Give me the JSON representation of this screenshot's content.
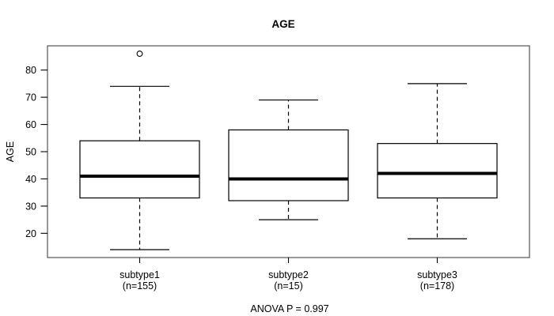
{
  "chart_data": {
    "type": "boxplot",
    "title": "AGE",
    "ylabel": "AGE",
    "footer": "ANOVA P = 0.997",
    "ylim": [
      11.1,
      88.9
    ],
    "yticks": [
      20,
      30,
      40,
      50,
      60,
      70,
      80
    ],
    "grid": false,
    "legend": "none",
    "categories": [
      "subtype1",
      "subtype2",
      "subtype3"
    ],
    "groups": [
      {
        "label": "subtype1",
        "n_label": "(n=155)",
        "whisker_low": 14,
        "q1": 33,
        "median": 41,
        "q3": 54,
        "whisker_high": 74,
        "outliers": [
          86
        ]
      },
      {
        "label": "subtype2",
        "n_label": "(n=15)",
        "whisker_low": 25,
        "q1": 32,
        "median": 40,
        "q3": 58,
        "whisker_high": 69,
        "outliers": []
      },
      {
        "label": "subtype3",
        "n_label": "(n=178)",
        "whisker_low": 18,
        "q1": 33,
        "median": 42,
        "q3": 53,
        "whisker_high": 75,
        "outliers": []
      }
    ],
    "colors": {
      "background": "#ffffff",
      "frame": "#444444",
      "box_stroke": "#000000",
      "box_fill": "#ffffff",
      "median": "#000000",
      "text": "#000000"
    }
  }
}
